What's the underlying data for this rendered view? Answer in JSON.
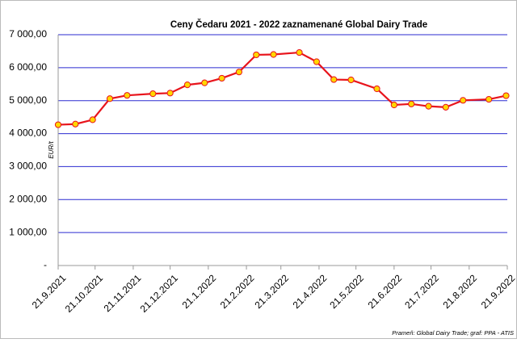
{
  "chart_data": {
    "type": "line",
    "title": "Ceny Čedaru 2021 - 2022 zaznamenané Global Dairy Trade",
    "y_label": "EUR/t",
    "source": "Prameň: Global Dairy Trade; graf: PPA - ATIS",
    "x": [
      "2021-09-21",
      "2021-10-05",
      "2021-10-19",
      "2021-11-02",
      "2021-11-16",
      "2021-12-07",
      "2021-12-21",
      "2022-01-04",
      "2022-01-18",
      "2022-02-01",
      "2022-02-15",
      "2022-03-01",
      "2022-03-15",
      "2022-04-05",
      "2022-04-19",
      "2022-05-03",
      "2022-05-17",
      "2022-06-07",
      "2022-06-21",
      "2022-07-05",
      "2022-07-19",
      "2022-08-02",
      "2022-08-16",
      "2022-09-06",
      "2022-09-20"
    ],
    "series": [
      {
        "name": "Čedar",
        "color": "#e8141c",
        "marker_color": "#ffd700",
        "values": [
          4270,
          4290,
          4420,
          5060,
          5160,
          5210,
          5230,
          5480,
          5540,
          5680,
          5870,
          6390,
          6400,
          6460,
          6180,
          5640,
          5630,
          5360,
          4870,
          4900,
          4830,
          4800,
          5010,
          5040,
          5150
        ]
      }
    ],
    "xlim": [
      "2021-09-21",
      "2022-09-21"
    ],
    "xticks": [
      {
        "value": "2021-09-21",
        "label": "21.9.2021"
      },
      {
        "value": "2021-10-21",
        "label": "21.10.2021"
      },
      {
        "value": "2021-11-21",
        "label": "21.11.2021"
      },
      {
        "value": "2021-12-21",
        "label": "21.12.2021"
      },
      {
        "value": "2022-01-21",
        "label": "21.1.2022"
      },
      {
        "value": "2022-02-21",
        "label": "21.2.2022"
      },
      {
        "value": "2022-03-21",
        "label": "21.3.2022"
      },
      {
        "value": "2022-04-21",
        "label": "21.4.2022"
      },
      {
        "value": "2022-05-21",
        "label": "21.5.2022"
      },
      {
        "value": "2022-06-21",
        "label": "21.6.2022"
      },
      {
        "value": "2022-07-21",
        "label": "21.7.2022"
      },
      {
        "value": "2022-08-21",
        "label": "21.8.2022"
      },
      {
        "value": "2022-09-21",
        "label": "21.9.2022"
      }
    ],
    "ylim": [
      0,
      7000
    ],
    "yticks": [
      {
        "value": 0,
        "label": "-"
      },
      {
        "value": 1000,
        "label": "1 000,00"
      },
      {
        "value": 2000,
        "label": "2 000,00"
      },
      {
        "value": 3000,
        "label": "3 000,00"
      },
      {
        "value": 4000,
        "label": "4 000,00"
      },
      {
        "value": 5000,
        "label": "5 000,00"
      },
      {
        "value": 6000,
        "label": "6 000,00"
      },
      {
        "value": 7000,
        "label": "7 000,00"
      }
    ],
    "grid": true,
    "grid_color": "#2b2bd0"
  }
}
